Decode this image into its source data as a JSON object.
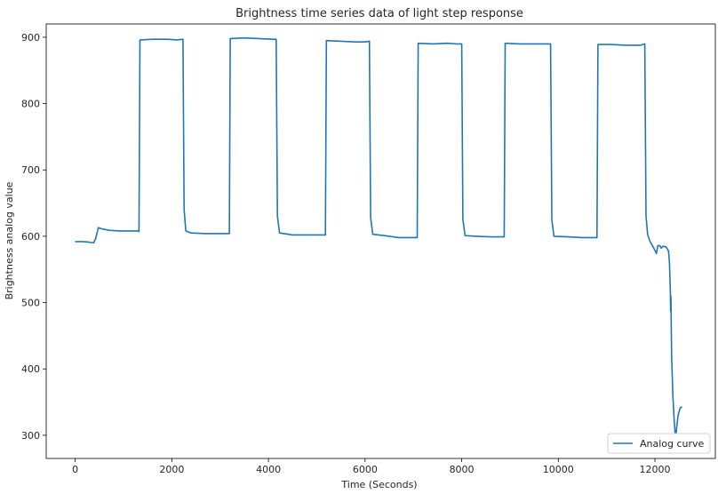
{
  "chart_data": {
    "type": "line",
    "title": "Brightness time series data of light step response",
    "xlabel": "Time (Seconds)",
    "ylabel": "Brightness analog value",
    "xlim": [
      -600,
      13250
    ],
    "ylim": [
      265,
      920
    ],
    "x_ticks": [
      0,
      2000,
      4000,
      6000,
      8000,
      10000,
      12000
    ],
    "y_ticks": [
      300,
      400,
      500,
      600,
      700,
      800,
      900
    ],
    "grid": false,
    "legend_position": "lower-right",
    "color": "#1f77b4",
    "series": [
      {
        "name": "Analog curve",
        "points": [
          [
            0,
            592
          ],
          [
            150,
            592
          ],
          [
            300,
            591
          ],
          [
            380,
            590
          ],
          [
            420,
            596
          ],
          [
            480,
            613
          ],
          [
            560,
            611
          ],
          [
            700,
            609
          ],
          [
            900,
            608
          ],
          [
            1100,
            608
          ],
          [
            1300,
            608
          ],
          [
            1320,
            607
          ],
          [
            1340,
            896
          ],
          [
            1600,
            897
          ],
          [
            1900,
            897
          ],
          [
            2100,
            896
          ],
          [
            2230,
            897
          ],
          [
            2255,
            640
          ],
          [
            2290,
            608
          ],
          [
            2400,
            605
          ],
          [
            2700,
            604
          ],
          [
            3000,
            604
          ],
          [
            3190,
            604
          ],
          [
            3210,
            898
          ],
          [
            3500,
            899
          ],
          [
            3800,
            898
          ],
          [
            4100,
            897
          ],
          [
            4160,
            897
          ],
          [
            4185,
            630
          ],
          [
            4230,
            605
          ],
          [
            4500,
            602
          ],
          [
            4800,
            602
          ],
          [
            5100,
            602
          ],
          [
            5180,
            602
          ],
          [
            5200,
            895
          ],
          [
            5500,
            894
          ],
          [
            5800,
            893
          ],
          [
            6000,
            893
          ],
          [
            6090,
            894
          ],
          [
            6115,
            628
          ],
          [
            6160,
            603
          ],
          [
            6400,
            601
          ],
          [
            6700,
            598
          ],
          [
            7000,
            598
          ],
          [
            7080,
            598
          ],
          [
            7100,
            891
          ],
          [
            7400,
            890
          ],
          [
            7700,
            891
          ],
          [
            7900,
            890
          ],
          [
            8000,
            890
          ],
          [
            8025,
            625
          ],
          [
            8070,
            601
          ],
          [
            8300,
            600
          ],
          [
            8600,
            599
          ],
          [
            8820,
            599
          ],
          [
            8880,
            599
          ],
          [
            8900,
            891
          ],
          [
            9200,
            890
          ],
          [
            9500,
            890
          ],
          [
            9800,
            890
          ],
          [
            9840,
            890
          ],
          [
            9865,
            625
          ],
          [
            9910,
            600
          ],
          [
            10200,
            599
          ],
          [
            10500,
            598
          ],
          [
            10780,
            598
          ],
          [
            10800,
            598
          ],
          [
            10820,
            889
          ],
          [
            11100,
            889
          ],
          [
            11400,
            888
          ],
          [
            11700,
            888
          ],
          [
            11790,
            890
          ],
          [
            11815,
            630
          ],
          [
            11850,
            602
          ],
          [
            11900,
            592
          ],
          [
            11960,
            584
          ],
          [
            11990,
            580
          ],
          [
            12030,
            574
          ],
          [
            12060,
            586
          ],
          [
            12100,
            586
          ],
          [
            12130,
            582
          ],
          [
            12170,
            585
          ],
          [
            12230,
            584
          ],
          [
            12280,
            578
          ],
          [
            12300,
            560
          ],
          [
            12320,
            515
          ],
          [
            12325,
            487
          ],
          [
            12330,
            510
          ],
          [
            12345,
            420
          ],
          [
            12370,
            360
          ],
          [
            12400,
            320
          ],
          [
            12420,
            302
          ],
          [
            12435,
            300
          ],
          [
            12450,
            312
          ],
          [
            12480,
            330
          ],
          [
            12520,
            341
          ],
          [
            12560,
            343
          ]
        ]
      }
    ]
  }
}
